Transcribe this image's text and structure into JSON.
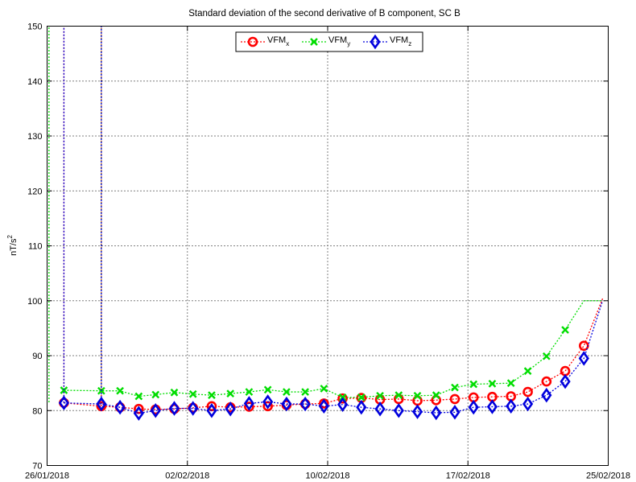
{
  "chart_data": {
    "type": "line",
    "title": "Standard deviation of the second derivative of B component, SC B",
    "ylabel": "nT/s",
    "ylabel_sup": "2",
    "ylim": [
      70,
      150
    ],
    "xlim": [
      0,
      30
    ],
    "yticks": [
      70,
      80,
      90,
      100,
      110,
      120,
      130,
      140,
      150
    ],
    "xticks": [
      {
        "x": 0,
        "label": "26/01/2018"
      },
      {
        "x": 7.5,
        "label": "02/02/2018"
      },
      {
        "x": 15,
        "label": "10/02/2018"
      },
      {
        "x": 22.5,
        "label": "17/02/2018"
      },
      {
        "x": 30,
        "label": "25/02/2018"
      }
    ],
    "grid": true,
    "legend_position": "top-center",
    "series": [
      {
        "name": "VFM",
        "name_sub": "x",
        "color": "#ff0000",
        "marker": "circle",
        "x": [
          0.9,
          2.9,
          3.9,
          4.9,
          5.8,
          6.8,
          7.8,
          8.8,
          9.8,
          10.8,
          11.8,
          12.8,
          13.8,
          14.8,
          15.8,
          16.8,
          17.8,
          18.8,
          19.8,
          20.8,
          21.8,
          22.8,
          23.8,
          24.8,
          25.7,
          26.7,
          27.7,
          28.7,
          29.7
        ],
        "values": [
          81.4,
          80.8,
          80.6,
          80.3,
          80.2,
          80.3,
          80.5,
          80.8,
          80.6,
          80.7,
          80.8,
          81.0,
          81.2,
          81.3,
          82.2,
          82.3,
          82.0,
          82.1,
          81.8,
          81.9,
          82.1,
          82.4,
          82.5,
          82.6,
          83.4,
          85.3,
          87.2,
          91.8,
          100.4
        ],
        "spikes": [
          {
            "x": 0.9,
            "to": 150
          },
          {
            "x": 2.9,
            "to": 150
          }
        ]
      },
      {
        "name": "VFM",
        "name_sub": "y",
        "color": "#00dd00",
        "marker": "x",
        "x": [
          0.9,
          2.9,
          3.9,
          4.9,
          5.8,
          6.8,
          7.8,
          8.8,
          9.8,
          10.8,
          11.8,
          12.8,
          13.8,
          14.8,
          15.8,
          16.8,
          17.8,
          18.8,
          19.8,
          20.8,
          21.8,
          22.8,
          23.8,
          24.8,
          25.7,
          26.7,
          27.7,
          28.7,
          29.7
        ],
        "values": [
          83.7,
          83.6,
          83.6,
          82.6,
          82.9,
          83.3,
          83.0,
          82.8,
          83.1,
          83.4,
          83.8,
          83.4,
          83.4,
          84.0,
          82.4,
          82.4,
          82.7,
          82.8,
          82.7,
          82.8,
          84.2,
          84.8,
          84.9,
          85.0,
          87.2,
          89.9,
          94.7,
          100.0,
          100.0
        ],
        "spikes": [
          {
            "x": 0.1,
            "to": 150
          },
          {
            "x": 2.9,
            "to": 150
          }
        ]
      },
      {
        "name": "VFM",
        "name_sub": "z",
        "color": "#0000dd",
        "marker": "diamond",
        "x": [
          0.9,
          2.9,
          3.9,
          4.9,
          5.8,
          6.8,
          7.8,
          8.8,
          9.8,
          10.8,
          11.8,
          12.8,
          13.8,
          14.8,
          15.8,
          16.8,
          17.8,
          18.8,
          19.8,
          20.8,
          21.8,
          22.8,
          23.8,
          24.8,
          25.7,
          26.7,
          27.7,
          28.7,
          29.7
        ],
        "values": [
          81.4,
          81.2,
          80.6,
          79.5,
          80.0,
          80.4,
          80.4,
          80.0,
          80.3,
          81.3,
          81.6,
          81.2,
          81.2,
          80.8,
          81.1,
          80.6,
          80.3,
          80.0,
          79.8,
          79.6,
          79.7,
          80.6,
          80.7,
          80.8,
          81.2,
          82.8,
          85.3,
          89.5,
          100.0
        ],
        "spikes": [
          {
            "x": 0.9,
            "to": 150
          },
          {
            "x": 2.9,
            "to": 150
          }
        ]
      }
    ]
  }
}
